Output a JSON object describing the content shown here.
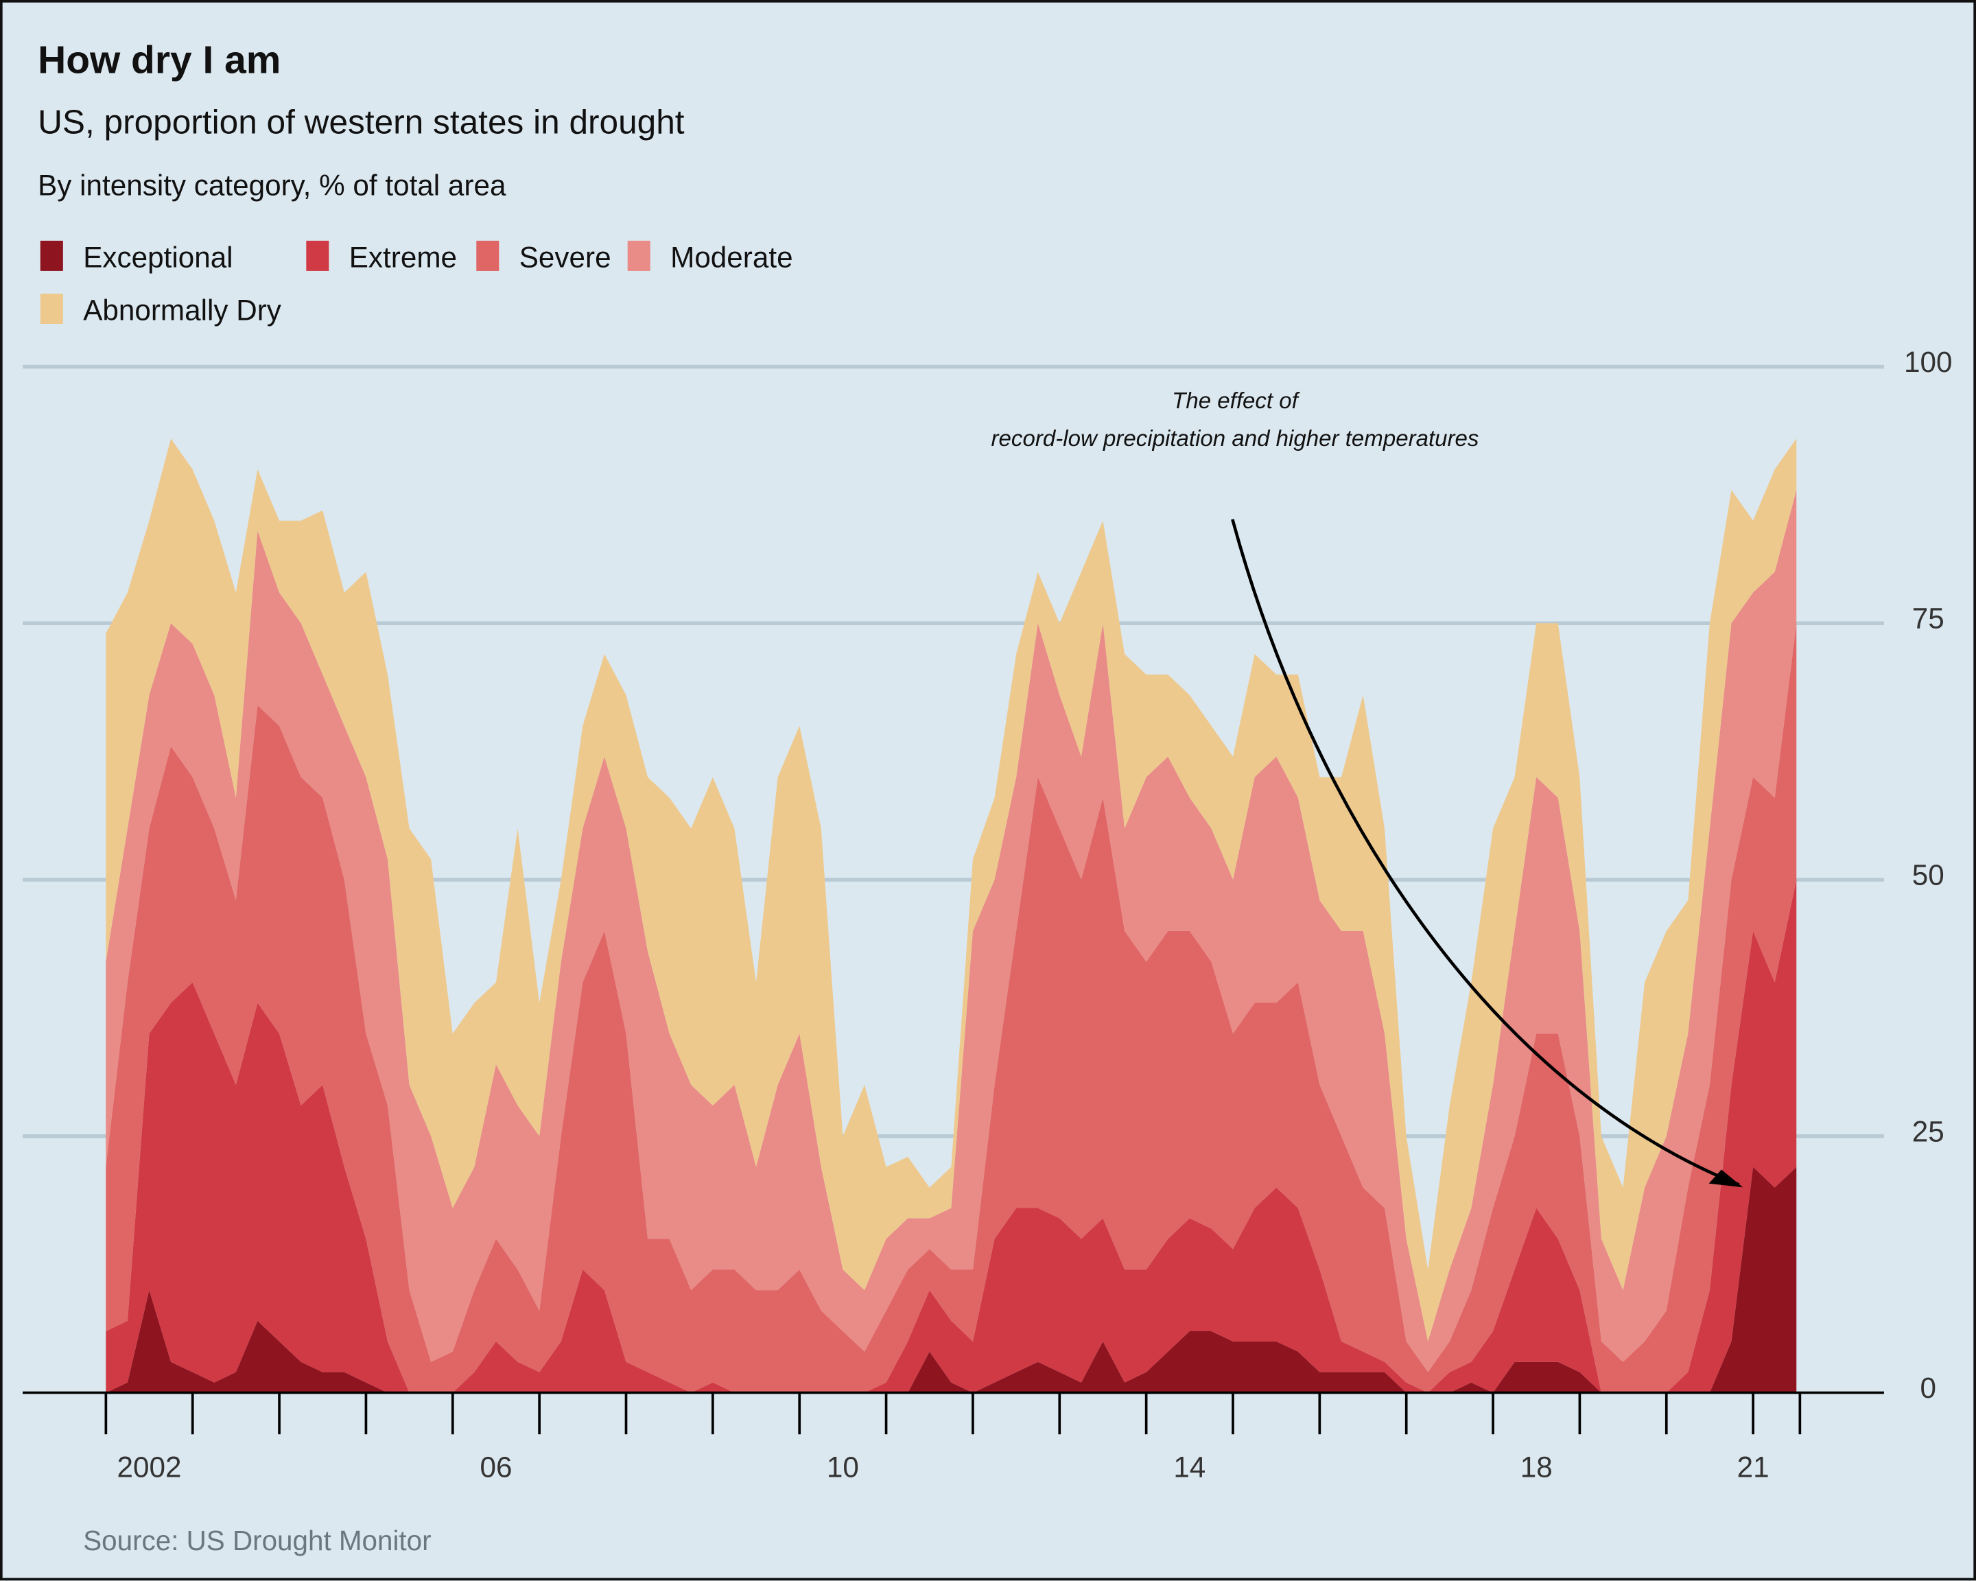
{
  "chart_data": {
    "type": "stacked-area",
    "title": "How dry I am",
    "subtitle": "US, proportion of western states in drought",
    "subtitle2": "By intensity category, % of total area",
    "source": "Source: US Drought Monitor",
    "annotation": [
      "The effect of",
      "record-low precipitation and higher temperatures"
    ],
    "legend": "top-left",
    "grid": true,
    "xlim": [
      2001.04,
      2022.51
    ],
    "ylim": [
      0,
      100
    ],
    "yticks": [
      0,
      25,
      50,
      75,
      100
    ],
    "xticks": [
      {
        "value": 2002.5,
        "label": "2002"
      },
      {
        "value": 2006.5,
        "label": "06"
      },
      {
        "value": 2010.5,
        "label": "10"
      },
      {
        "value": 2014.5,
        "label": "14"
      },
      {
        "value": 2018.5,
        "label": "18"
      },
      {
        "value": 2021,
        "label": "21"
      }
    ],
    "x_minor_ticks": [
      2002,
      2003,
      2004,
      2005,
      2006,
      2007,
      2008,
      2009,
      2010,
      2011,
      2012,
      2013,
      2014,
      2015,
      2016,
      2017,
      2018,
      2019,
      2020,
      2021,
      2021.54
    ],
    "x": [
      2002,
      2002.25,
      2002.5,
      2002.75,
      2003,
      2003.25,
      2003.5,
      2003.75,
      2004,
      2004.25,
      2004.5,
      2004.75,
      2005,
      2005.25,
      2005.5,
      2005.75,
      2006,
      2006.25,
      2006.5,
      2006.75,
      2007,
      2007.25,
      2007.5,
      2007.75,
      2008,
      2008.25,
      2008.5,
      2008.75,
      2009,
      2009.25,
      2009.5,
      2009.75,
      2010,
      2010.25,
      2010.5,
      2010.75,
      2011,
      2011.25,
      2011.5,
      2011.75,
      2012,
      2012.25,
      2012.5,
      2012.75,
      2013,
      2013.25,
      2013.5,
      2013.75,
      2014,
      2014.25,
      2014.5,
      2014.75,
      2015,
      2015.25,
      2015.5,
      2015.75,
      2016,
      2016.25,
      2016.5,
      2016.75,
      2017,
      2017.25,
      2017.5,
      2017.75,
      2018,
      2018.25,
      2018.5,
      2018.75,
      2019,
      2019.25,
      2019.5,
      2019.75,
      2020,
      2020.25,
      2020.5,
      2020.75,
      2021,
      2021.25,
      2021.5
    ],
    "series": [
      {
        "name": "Exceptional",
        "color": "#8e1420",
        "values": [
          0,
          1,
          10,
          3,
          2,
          1,
          2,
          7,
          5,
          3,
          2,
          2,
          1,
          0,
          0,
          0,
          0,
          0,
          0,
          0,
          0,
          0,
          0,
          0,
          0,
          0,
          0,
          0,
          0,
          0,
          0,
          0,
          0,
          0,
          0,
          0,
          0,
          0,
          4,
          1,
          0,
          1,
          2,
          3,
          2,
          1,
          5,
          1,
          2,
          4,
          6,
          6,
          5,
          5,
          5,
          4,
          2,
          2,
          2,
          2,
          0,
          0,
          0,
          1,
          0,
          3,
          3,
          3,
          2,
          0,
          0,
          0,
          0,
          0,
          0,
          5,
          22,
          20,
          22
        ]
      },
      {
        "name": "Extreme",
        "color": "#d03a45",
        "values": [
          6,
          6,
          25,
          35,
          38,
          34,
          28,
          31,
          30,
          25,
          28,
          20,
          14,
          5,
          0,
          0,
          0,
          2,
          5,
          3,
          2,
          5,
          12,
          10,
          3,
          2,
          1,
          0,
          1,
          0,
          0,
          0,
          0,
          0,
          0,
          0,
          1,
          5,
          6,
          6,
          5,
          14,
          16,
          15,
          15,
          14,
          12,
          11,
          10,
          11,
          11,
          10,
          9,
          13,
          15,
          14,
          10,
          3,
          2,
          1,
          1,
          0,
          2,
          2,
          6,
          9,
          15,
          12,
          8,
          0,
          0,
          0,
          0,
          2,
          10,
          25,
          23,
          20,
          28
        ]
      },
      {
        "name": "Severe",
        "color": "#e06565",
        "values": [
          16,
          33,
          20,
          25,
          20,
          20,
          18,
          29,
          30,
          32,
          28,
          28,
          20,
          23,
          10,
          3,
          4,
          8,
          10,
          9,
          6,
          20,
          28,
          35,
          32,
          13,
          14,
          10,
          11,
          12,
          10,
          10,
          12,
          8,
          6,
          4,
          7,
          7,
          4,
          5,
          7,
          15,
          27,
          42,
          38,
          35,
          41,
          33,
          30,
          30,
          28,
          26,
          21,
          20,
          18,
          22,
          18,
          20,
          16,
          15,
          4,
          2,
          3,
          7,
          12,
          13,
          17,
          20,
          15,
          5,
          3,
          5,
          8,
          18,
          20,
          20,
          15,
          18,
          25
        ]
      },
      {
        "name": "Moderate",
        "color": "#e98b87",
        "values": [
          20,
          15,
          13,
          12,
          13,
          13,
          10,
          17,
          13,
          15,
          12,
          15,
          25,
          24,
          20,
          22,
          14,
          12,
          17,
          16,
          17,
          17,
          15,
          17,
          20,
          28,
          20,
          20,
          16,
          18,
          12,
          20,
          23,
          14,
          6,
          6,
          7,
          5,
          3,
          6,
          33,
          20,
          15,
          15,
          13,
          12,
          17,
          10,
          18,
          17,
          13,
          13,
          15,
          22,
          24,
          18,
          18,
          20,
          25,
          17,
          10,
          3,
          7,
          8,
          12,
          20,
          25,
          23,
          20,
          10,
          7,
          15,
          17,
          15,
          25,
          25,
          18,
          22,
          13
        ]
      },
      {
        "name": "Abnormally Dry",
        "color": "#edc98e",
        "values": [
          32,
          23,
          17,
          18,
          17,
          17,
          20,
          6,
          7,
          10,
          16,
          13,
          20,
          18,
          25,
          27,
          17,
          16,
          8,
          27,
          13,
          8,
          10,
          10,
          13,
          17,
          23,
          25,
          32,
          25,
          18,
          30,
          30,
          33,
          13,
          20,
          7,
          6,
          3,
          4,
          7,
          8,
          12,
          5,
          7,
          18,
          10,
          17,
          10,
          8,
          10,
          10,
          12,
          12,
          8,
          12,
          12,
          15,
          23,
          20,
          10,
          7,
          16,
          22,
          25,
          15,
          15,
          17,
          15,
          10,
          10,
          20,
          20,
          13,
          20,
          13,
          7,
          10,
          5
        ]
      }
    ]
  }
}
